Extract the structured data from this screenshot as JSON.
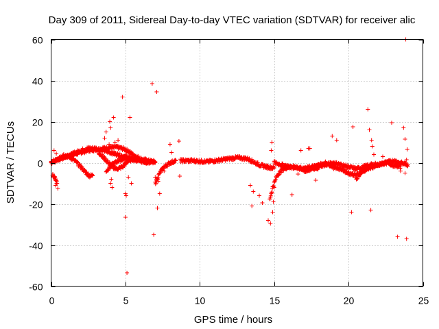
{
  "chart_data": {
    "type": "scatter",
    "title": "Day 309 of 2011, Sidereal Day-to-day VTEC variation (SDTVAR) for receiver alic",
    "xlabel": "GPS time / hours",
    "ylabel": "SDTVAR / TECUs",
    "xlim": [
      0,
      25
    ],
    "ylim": [
      -60,
      60
    ],
    "grid": true,
    "marker": "+",
    "color": "#ff0000",
    "x_ticks": [
      0,
      5,
      10,
      15,
      20,
      25
    ],
    "x_tick_labels": [
      "0",
      "5",
      "10",
      "15",
      "20",
      "25"
    ],
    "y_ticks": [
      -60,
      -40,
      -20,
      0,
      20,
      40,
      60
    ],
    "y_tick_labels": [
      "-60",
      "-40",
      "-20",
      "0",
      "20",
      "40",
      "60"
    ],
    "dense_tracks": [
      {
        "x": [
          0.0,
          0.5,
          1.0,
          1.5,
          2.0,
          2.5,
          3.0,
          3.5,
          4.0,
          4.5,
          5.0,
          5.5,
          6.0,
          6.5,
          7.0
        ],
        "y": [
          0.5,
          2.0,
          3.0,
          4.0,
          5.0,
          6.0,
          6.5,
          7.0,
          7.5,
          7.5,
          6.5,
          4.0,
          2.0,
          1.0,
          0.5
        ]
      },
      {
        "x": [
          0.0,
          0.5,
          1.0,
          1.5,
          2.0,
          2.5,
          3.0,
          3.5,
          4.0,
          4.5,
          5.0,
          5.5,
          6.0,
          6.5
        ],
        "y": [
          0.0,
          1.5,
          3.0,
          4.5,
          6.0,
          7.0,
          7.0,
          6.0,
          5.0,
          4.0,
          3.0,
          2.0,
          1.0,
          0.0
        ]
      },
      {
        "x": [
          0.8,
          1.2,
          1.6,
          2.0,
          2.3,
          2.6,
          2.8
        ],
        "y": [
          4.0,
          3.0,
          1.0,
          -2.0,
          -4.5,
          -6.5,
          -6.0
        ]
      },
      {
        "x": [
          3.2,
          3.6,
          4.0,
          4.4,
          4.8,
          5.2,
          5.6,
          6.0
        ],
        "y": [
          5.0,
          2.0,
          -1.0,
          -3.0,
          -2.0,
          1.0,
          2.0,
          1.0
        ]
      },
      {
        "x": [
          3.7,
          4.1,
          4.5,
          5.0,
          5.5,
          6.0,
          6.5,
          7.0
        ],
        "y": [
          -4.0,
          -1.0,
          1.0,
          2.0,
          1.5,
          1.0,
          0.5,
          0.0
        ]
      },
      {
        "x": [
          7.0,
          7.3,
          7.6,
          8.0,
          8.4
        ],
        "y": [
          -10.0,
          -5.0,
          -2.0,
          0.0,
          1.0
        ]
      },
      {
        "x": [
          8.7,
          9.5,
          10.5,
          11.5,
          12.5,
          13.2,
          14.0,
          14.5,
          15.0
        ],
        "y": [
          1.0,
          1.0,
          0.5,
          1.5,
          2.5,
          2.0,
          -1.0,
          -2.0,
          -2.5
        ]
      },
      {
        "x": [
          14.7,
          14.9,
          15.2,
          15.6,
          16.0,
          16.5,
          17.0,
          17.5,
          18.0
        ],
        "y": [
          -18.0,
          -12.0,
          -6.0,
          -3.0,
          -2.0,
          -2.5,
          -3.0,
          -3.0,
          -2.5
        ]
      },
      {
        "x": [
          15.0,
          15.5,
          16.0,
          16.5,
          17.0,
          17.5,
          18.0,
          18.5,
          19.0,
          19.5,
          20.0,
          20.5,
          21.0,
          21.5,
          22.0,
          22.5,
          23.0,
          23.5,
          24.0
        ],
        "y": [
          0.0,
          -1.0,
          -2.0,
          -2.0,
          -3.0,
          -2.0,
          -1.5,
          -1.0,
          0.0,
          -1.0,
          -2.0,
          -3.0,
          -2.0,
          -1.0,
          -1.0,
          0.0,
          1.0,
          0.0,
          -1.0
        ]
      },
      {
        "x": [
          17.0,
          17.5,
          18.0,
          18.5,
          19.0,
          19.5,
          20.0,
          20.5,
          21.0,
          21.5,
          22.0,
          22.5,
          23.0,
          23.5
        ],
        "y": [
          -4.0,
          -3.0,
          -1.0,
          0.0,
          -2.0,
          -3.0,
          -5.0,
          -6.0,
          -4.0,
          -2.0,
          -1.0,
          0.0,
          -1.0,
          -2.0
        ]
      },
      {
        "x": [
          20.5,
          20.8,
          21.2,
          21.6,
          22.0
        ],
        "y": [
          -8.0,
          -5.0,
          -3.0,
          -2.0,
          -1.0
        ]
      },
      {
        "x": [
          0.1,
          0.2,
          0.3,
          0.4
        ],
        "y": [
          -6.0,
          -7.0,
          -8.0,
          -10.0
        ]
      }
    ],
    "scatter_points": {
      "x": [
        0.2,
        0.35,
        0.3,
        0.45,
        0.5,
        3.6,
        3.7,
        3.9,
        3.95,
        4.0,
        4.2,
        4.3,
        4.0,
        4.1,
        4.05,
        4.2,
        4.5,
        4.3,
        4.8,
        5.0,
        5.0,
        5.1,
        5.2,
        5.3,
        5.05,
        5.4,
        6.8,
        6.9,
        7.1,
        7.15,
        7.3,
        7.2,
        7.0,
        7.6,
        8.0,
        8.1,
        8.6,
        8.65,
        13.4,
        13.6,
        13.5,
        14.0,
        14.2,
        14.6,
        14.75,
        14.8,
        14.85,
        14.9,
        14.95,
        15.0,
        16.2,
        16.6,
        16.8,
        17.3,
        17.4,
        17.8,
        18.9,
        19.0,
        19.2,
        20.2,
        20.3,
        21.3,
        21.4,
        21.5,
        21.55,
        21.6,
        21.7,
        21.8,
        22.3,
        22.9,
        23.0,
        23.2,
        23.3,
        23.5,
        23.7,
        23.8,
        23.85,
        23.9,
        23.95,
        23.8,
        23.9
      ],
      "y": [
        6.0,
        4.5,
        -11.0,
        -12.5,
        2.0,
        12.0,
        15.0,
        9.0,
        20.0,
        17.0,
        22.0,
        10.0,
        -10.0,
        -12.0,
        -8.0,
        -3.0,
        11.0,
        4.0,
        32.0,
        -15.0,
        -26.5,
        -53.5,
        -7.0,
        22.0,
        -16.0,
        -10.0,
        38.5,
        -35.0,
        34.5,
        -22.0,
        -15.0,
        -9.0,
        -7.0,
        -4.0,
        9.0,
        5.0,
        10.5,
        -6.5,
        -11.0,
        -14.0,
        -21.0,
        -16.0,
        -19.5,
        -28.0,
        -29.5,
        6.0,
        10.0,
        -24.0,
        -19.0,
        -12.0,
        -15.5,
        -5.5,
        6.0,
        7.0,
        7.0,
        -8.5,
        13.0,
        -3.0,
        11.0,
        -24.0,
        17.5,
        26.0,
        16.0,
        -23.0,
        11.0,
        8.0,
        4.0,
        0.0,
        3.0,
        19.5,
        -2.0,
        1.0,
        -36.0,
        -4.0,
        17.0,
        11.5,
        60.0,
        -37.0,
        6.5,
        -5.0,
        1.5
      ]
    }
  }
}
